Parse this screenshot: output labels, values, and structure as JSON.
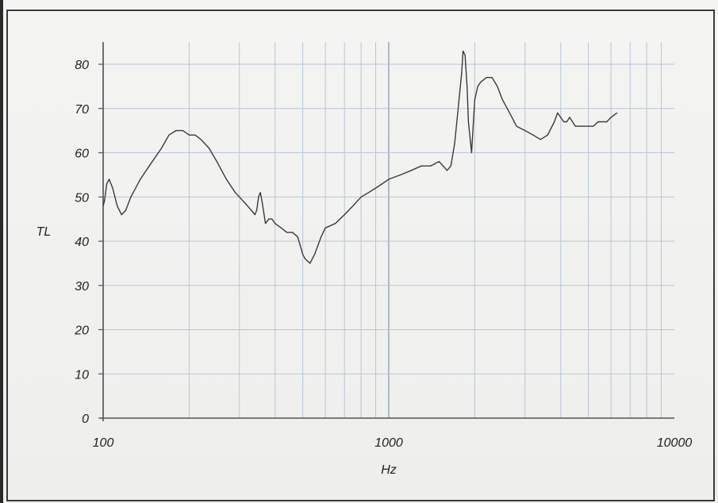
{
  "page": {
    "top_fragment": ""
  },
  "chart_data": {
    "type": "line",
    "title": "",
    "xlabel": "Hz",
    "ylabel": "TL",
    "x_scale": "log",
    "xlim": [
      100,
      10000
    ],
    "ylim": [
      0,
      85
    ],
    "x_ticks": [
      100,
      1000,
      10000
    ],
    "x_tick_labels": [
      "100",
      "1000",
      "10000"
    ],
    "y_ticks": [
      0,
      10,
      20,
      30,
      40,
      50,
      60,
      70,
      80
    ],
    "y_tick_labels": [
      "0",
      "10",
      "20",
      "30",
      "40",
      "50",
      "60",
      "70",
      "80"
    ],
    "grid": true,
    "legend": "none",
    "colors": {
      "line": "#3a3a3a",
      "grid": "#b9c6d6",
      "frame": "#555555",
      "text": "#222222"
    },
    "series": [
      {
        "x": [
          100,
          101,
          103,
          105,
          108,
          112,
          116,
          120,
          125,
          135,
          145,
          160,
          170,
          180,
          190,
          200,
          210,
          220,
          235,
          250,
          270,
          290,
          300,
          320,
          330,
          340,
          345,
          350,
          355,
          360,
          370,
          380,
          390,
          400,
          420,
          440,
          460,
          480,
          500,
          510,
          530,
          550,
          580,
          600,
          650,
          700,
          750,
          800,
          850,
          900,
          950,
          1000,
          1100,
          1200,
          1300,
          1400,
          1500,
          1550,
          1600,
          1650,
          1700,
          1750,
          1800,
          1820,
          1850,
          1880,
          1900,
          1950,
          2000,
          2050,
          2100,
          2200,
          2300,
          2400,
          2500,
          2600,
          2700,
          2800,
          3000,
          3200,
          3400,
          3600,
          3800,
          3900,
          4000,
          4100,
          4200,
          4300,
          4400,
          4500,
          4600,
          4700,
          4800,
          5000,
          5200,
          5400,
          5600,
          5800,
          6000,
          6300
        ],
        "y": [
          48,
          49,
          53,
          54,
          52,
          48,
          46,
          47,
          50,
          54,
          57,
          61,
          64,
          65,
          65,
          64,
          64,
          63,
          61,
          58,
          54,
          51,
          50,
          48,
          47,
          46,
          47,
          50,
          51,
          49,
          44,
          45,
          45,
          44,
          43,
          42,
          42,
          41,
          37,
          36,
          35,
          37,
          41,
          43,
          44,
          46,
          48,
          50,
          51,
          52,
          53,
          54,
          55,
          56,
          57,
          57,
          58,
          57,
          56,
          57,
          62,
          70,
          78,
          83,
          82,
          75,
          67,
          60,
          72,
          75,
          76,
          77,
          77,
          75,
          72,
          70,
          68,
          66,
          65,
          64,
          63,
          64,
          67,
          69,
          68,
          67,
          67,
          68,
          67,
          66,
          66,
          66,
          66,
          66,
          66,
          67,
          67,
          67,
          68,
          69
        ]
      }
    ]
  }
}
